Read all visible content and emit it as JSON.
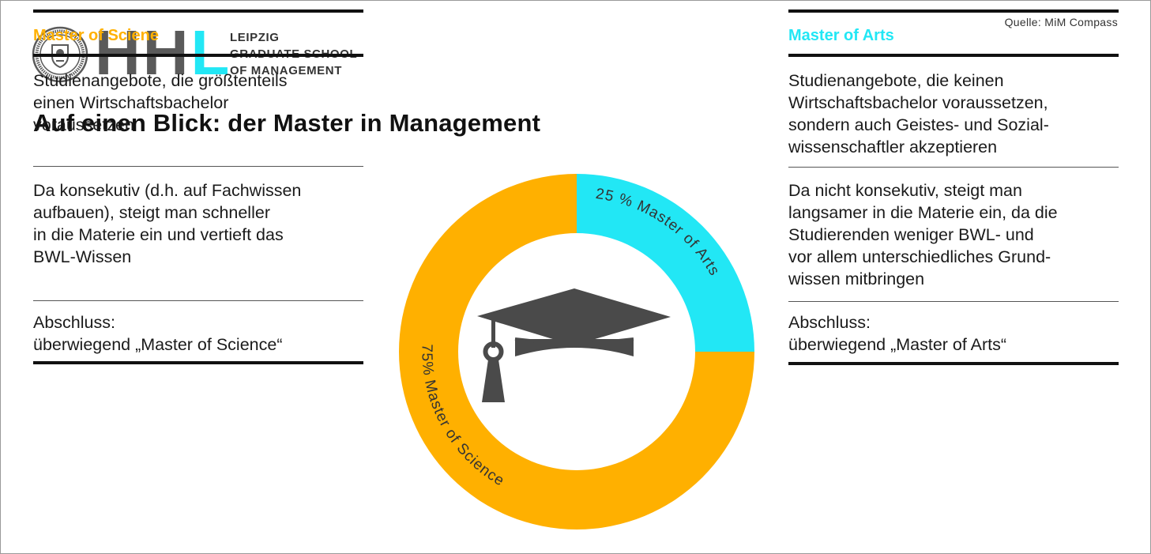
{
  "source": "Quelle:  MiM Compass",
  "logo": {
    "letters_dark": "HH",
    "letters_accent": "L",
    "school_lines": [
      "LEIPZIG",
      "GRADUATE SCHOOL",
      "OF MANAGEMENT"
    ]
  },
  "title": "Auf einen Blick: der Master in Management",
  "colors": {
    "orange": "#FFB000",
    "cyan": "#22E7F5",
    "dark": "#4A4A4A"
  },
  "left": {
    "heading": "Master of Sciene",
    "blocks": [
      [
        "Studienangebote, die größtenteils",
        "einen Wirtschaftsbachelor",
        "voraussetzen"
      ],
      [
        "Da konsekutiv (d.h. auf Fachwissen",
        "aufbauen), steigt man schneller",
        "in die Materie ein und vertieft das",
        "BWL-Wissen"
      ],
      [
        "Abschluss:",
        "überwiegend „Master of Science“"
      ]
    ]
  },
  "right": {
    "heading": "Master of Arts",
    "blocks": [
      [
        "Studienangebote, die keinen",
        "Wirtschaftsbachelor voraussetzen,",
        "sondern auch Geistes- und Sozial-",
        "wissenschaftler akzeptieren"
      ],
      [
        "Da nicht konsekutiv, steigt man",
        "langsamer in die Materie ein, da die",
        "Studierenden weniger BWL- und",
        "vor allem unterschiedliches Grund-",
        "wissen mitbringen"
      ],
      [
        "Abschluss:",
        "überwiegend „Master of Arts“"
      ]
    ]
  },
  "chart_data": {
    "type": "pie",
    "series": [
      {
        "label": "25 % Master of Arts",
        "value": 25,
        "color": "#22E7F5"
      },
      {
        "label": "75% Master of Science",
        "value": 75,
        "color": "#FFB000"
      }
    ],
    "center_icon": "graduation-cap-icon"
  }
}
